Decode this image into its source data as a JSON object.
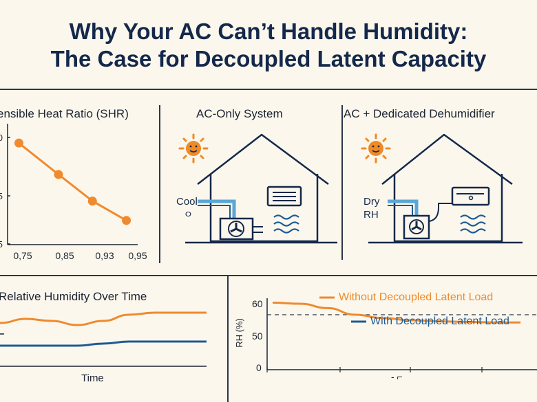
{
  "title": {
    "line1": "Why Your AC Can’t Handle Humidity:",
    "line2": "The Case for Decoupled Latent Capacity"
  },
  "colors": {
    "navy": "#14284b",
    "orange": "#ef8a2e",
    "blue": "#1c5b96",
    "sun": "#f08a24",
    "cream": "#fbf7ec"
  },
  "shr_panel": {
    "title": "ensible Heat Ratio (SHR)",
    "y_ticks": [
      "0",
      "5",
      "5"
    ],
    "x_ticks": [
      "0,75",
      "0,85",
      "0,93",
      "0,95"
    ]
  },
  "ac_only": {
    "title": "AC-Only System",
    "label_line1": "Cool",
    "label_line2": "ㅇ",
    "icons": [
      "sun-icon",
      "house-icon",
      "fan-unit-icon",
      "indoor-unit-icon",
      "humidity-waves-icon"
    ]
  },
  "ac_dehum": {
    "title": "AC + Dedicated Dehumidifier",
    "label_line1": "Dry",
    "label_line2": "RH",
    "icons": [
      "sun-icon",
      "house-icon",
      "fan-unit-icon",
      "dehumidifier-icon",
      "humidity-waves-icon"
    ]
  },
  "rh_time_panel": {
    "title": "Relative Humidity Over Time",
    "xlabel": "Time"
  },
  "rh_panel": {
    "ylabel": "RH (%)",
    "y_ticks": [
      "60",
      "50",
      "0"
    ],
    "legend_orange": "Without Decoupled Latent Load",
    "legend_blue": "With Decoupled Latent Load",
    "bottom_mark": "- ⌐"
  },
  "chart_data": [
    {
      "type": "line",
      "title": "ensible Heat Ratio (SHR)",
      "x": [
        0.75,
        0.82,
        0.88,
        0.94
      ],
      "series": [
        {
          "values": [
            0.87,
            0.74,
            0.63,
            0.55
          ]
        }
      ],
      "xlim": [
        0.73,
        0.96
      ],
      "ylim": [
        0.45,
        0.95
      ]
    },
    {
      "type": "line",
      "title": "Relative Humidity Over Time",
      "xlabel": "Time",
      "x": [
        0,
        1,
        2,
        3,
        4,
        5,
        6,
        7,
        8
      ],
      "series": [
        {
          "values": [
            51,
            53,
            52,
            50,
            52,
            55,
            56,
            56,
            56
          ]
        },
        {
          "values": [
            40,
            40,
            40,
            40,
            41,
            42,
            42,
            42,
            42
          ]
        }
      ]
    },
    {
      "type": "line",
      "ylabel": "RH (%)",
      "ylim": [
        0,
        65
      ],
      "x": [
        0,
        1,
        2,
        3,
        4,
        5,
        6,
        7,
        8,
        9
      ],
      "series": [
        {
          "name": "Without Decoupled Latent Load",
          "values": [
            61,
            60,
            56,
            50,
            47,
            45,
            44,
            43.5,
            43,
            43
          ]
        }
      ],
      "reference_line": 50
    }
  ]
}
